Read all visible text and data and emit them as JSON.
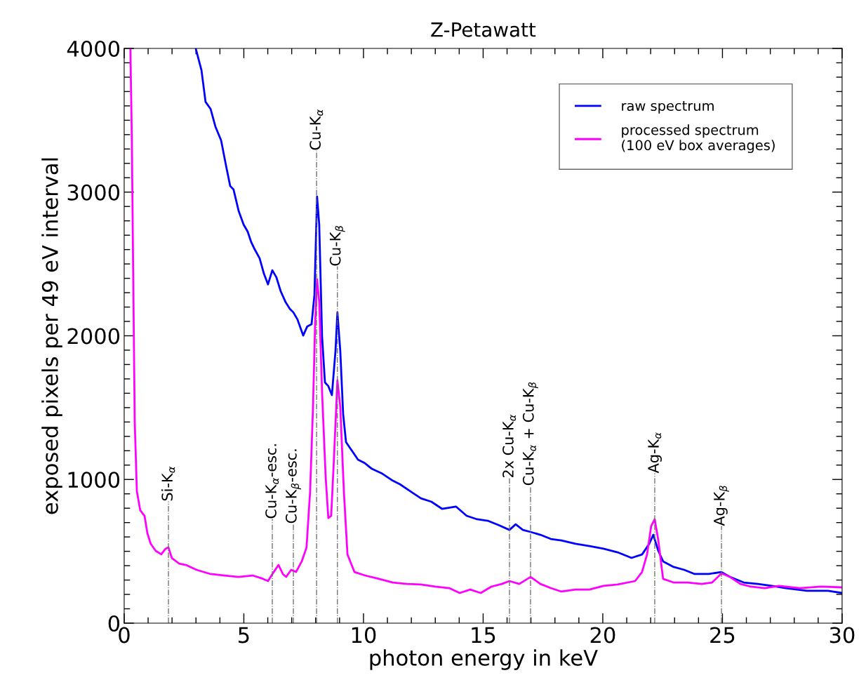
{
  "chart_data": {
    "type": "line",
    "title": "Z-Petawatt",
    "xlabel": "photon energy in keV",
    "ylabel": "exposed pixels per 49 eV interval",
    "xlim": [
      0,
      30
    ],
    "xticks": [
      0,
      5,
      10,
      15,
      20,
      25,
      30
    ],
    "ylim": [
      0,
      4000
    ],
    "yticks": [
      0,
      1000,
      2000,
      3000,
      4000
    ],
    "grid": false,
    "legend": "top right",
    "line_style": "solid",
    "marker": "none",
    "series": [
      {
        "name": "raw spectrum",
        "color": "#0000ff",
        "x": [
          2.99,
          3.23,
          3.4,
          3.61,
          3.81,
          4.05,
          4.25,
          4.43,
          4.57,
          4.78,
          4.99,
          5.16,
          5.31,
          5.45,
          5.66,
          5.84,
          6.01,
          6.19,
          6.36,
          6.54,
          6.74,
          6.92,
          7.07,
          7.24,
          7.48,
          7.65,
          7.83,
          7.95,
          8.06,
          8.15,
          8.27,
          8.39,
          8.53,
          8.68,
          8.83,
          8.91,
          9.03,
          9.15,
          9.27,
          9.47,
          9.77,
          10.06,
          10.35,
          10.79,
          11.23,
          11.52,
          11.96,
          12.4,
          12.84,
          13.28,
          13.87,
          14.31,
          14.75,
          15.19,
          15.63,
          16.1,
          16.36,
          16.66,
          16.98,
          17.39,
          17.83,
          18.27,
          18.86,
          19.44,
          20.03,
          20.62,
          21.2,
          21.64,
          21.94,
          22.11,
          22.32,
          22.52,
          22.96,
          23.4,
          23.84,
          24.43,
          24.96,
          25.31,
          25.89,
          26.48,
          27.07,
          27.65,
          28.53,
          29.41,
          30.0
        ],
        "values": [
          4000,
          3848,
          3628,
          3579,
          3457,
          3360,
          3189,
          3042,
          3018,
          2871,
          2774,
          2725,
          2651,
          2603,
          2539,
          2432,
          2358,
          2456,
          2407,
          2310,
          2236,
          2188,
          2163,
          2114,
          2002,
          2065,
          2080,
          2285,
          2969,
          2774,
          1992,
          1675,
          1650,
          1587,
          1895,
          2163,
          1895,
          1455,
          1260,
          1211,
          1138,
          1113,
          1074,
          1040,
          991,
          967,
          918,
          869,
          845,
          796,
          811,
          747,
          723,
          713,
          684,
          649,
          688,
          649,
          635,
          615,
          586,
          576,
          552,
          537,
          518,
          493,
          454,
          478,
          552,
          615,
          503,
          430,
          391,
          371,
          342,
          342,
          356,
          322,
          283,
          273,
          259,
          244,
          225,
          225,
          210
        ]
      },
      {
        "name": "processed spectrum\n(100 eV box averages)",
        "color": "#ff00ff",
        "x": [
          0.26,
          0.32,
          0.38,
          0.44,
          0.53,
          0.67,
          0.85,
          0.97,
          1.11,
          1.32,
          1.55,
          1.73,
          1.85,
          1.99,
          2.29,
          2.58,
          3.02,
          3.61,
          4.19,
          4.78,
          5.37,
          5.81,
          6.01,
          6.25,
          6.45,
          6.63,
          6.77,
          6.98,
          7.18,
          7.42,
          7.62,
          7.77,
          7.89,
          7.98,
          8.06,
          8.15,
          8.27,
          8.42,
          8.53,
          8.65,
          8.77,
          8.91,
          9.03,
          9.18,
          9.33,
          9.62,
          10.06,
          10.65,
          11.23,
          11.82,
          12.4,
          12.99,
          13.58,
          14.02,
          14.46,
          14.9,
          15.34,
          15.78,
          16.1,
          16.51,
          16.98,
          17.39,
          17.83,
          18.27,
          18.86,
          19.44,
          20.03,
          20.62,
          21.35,
          21.64,
          21.85,
          22.02,
          22.17,
          22.32,
          22.52,
          22.96,
          23.55,
          24.13,
          24.57,
          24.96,
          25.31,
          25.75,
          26.19,
          26.77,
          27.36,
          28.24,
          29.12,
          30.0
        ],
        "values": [
          4000,
          3360,
          2383,
          1406,
          918,
          786,
          747,
          625,
          552,
          503,
          479,
          518,
          527,
          454,
          415,
          405,
          371,
          342,
          332,
          322,
          332,
          308,
          293,
          356,
          405,
          342,
          322,
          371,
          356,
          430,
          527,
          918,
          1504,
          2090,
          2393,
          2236,
          1602,
          1016,
          732,
          747,
          1162,
          1690,
          1504,
          918,
          479,
          356,
          332,
          308,
          283,
          273,
          269,
          254,
          244,
          210,
          234,
          210,
          254,
          273,
          293,
          273,
          322,
          273,
          244,
          220,
          234,
          234,
          259,
          269,
          293,
          356,
          479,
          674,
          723,
          576,
          308,
          283,
          283,
          273,
          283,
          347,
          322,
          273,
          254,
          244,
          259,
          244,
          254,
          249
        ]
      }
    ],
    "ref_lines": [
      {
        "axis": "x",
        "value": 1.85,
        "label": "Si-K$_{α}$",
        "color": "#666666",
        "line_style": "dashdot"
      },
      {
        "axis": "x",
        "value": 6.19,
        "label": "Cu-K$_{α}$-esc.",
        "color": "#666666",
        "line_style": "dashdot"
      },
      {
        "axis": "x",
        "value": 7.07,
        "label": "Cu-K$_{β}$-esc.",
        "color": "#666666",
        "line_style": "dashdot"
      },
      {
        "axis": "x",
        "value": 8.04,
        "label": "Cu-K$_{α}$",
        "color": "#666666",
        "line_style": "dashdot"
      },
      {
        "axis": "x",
        "value": 8.91,
        "label": "Cu-K$_{β}$",
        "color": "#666666",
        "line_style": "dashdot"
      },
      {
        "axis": "x",
        "value": 16.1,
        "label": "2x Cu-K$_{α}$",
        "color": "#666666",
        "line_style": "dashdot"
      },
      {
        "axis": "x",
        "value": 16.98,
        "label": "Cu-K$_{α}$ + Cu-K$_{β}$",
        "color": "#666666",
        "line_style": "dashdot"
      },
      {
        "axis": "x",
        "value": 22.17,
        "label": "Ag-K$_{α}$",
        "color": "#666666",
        "line_style": "dashdot"
      },
      {
        "axis": "x",
        "value": 24.96,
        "label": "Ag-K$_{β}$",
        "color": "#666666",
        "line_style": "dashdot"
      }
    ]
  }
}
